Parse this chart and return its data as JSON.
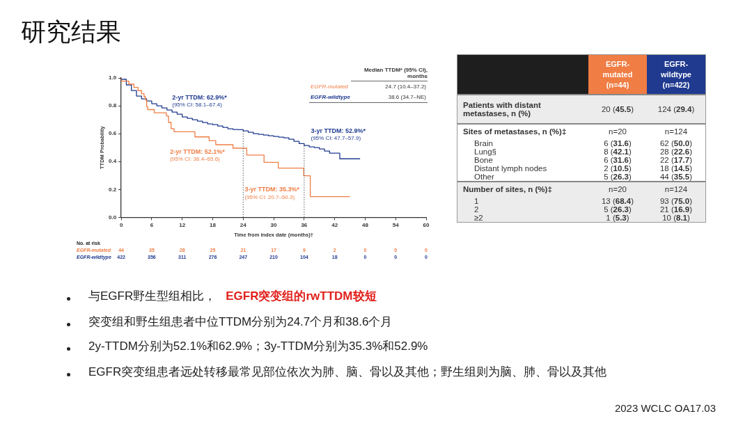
{
  "chart_data": [
    {
      "type": "step",
      "title": "研究结果",
      "xlabel": "Time from index date (months)†",
      "ylabel": "TTDM Probability",
      "legend_title": "Median TTDM* (95% CI), months",
      "legend": "top right",
      "xlim": [
        0,
        60
      ],
      "xticks": [
        0,
        6,
        12,
        18,
        24,
        30,
        36,
        42,
        48,
        54,
        60
      ],
      "ylim": [
        0,
        1
      ],
      "yticks": [
        {
          "value": 0,
          "label": "0.0"
        },
        {
          "value": 0.2,
          "label": "0.2"
        },
        {
          "value": 0.4,
          "label": "0.4"
        },
        {
          "value": 0.6,
          "label": "0.6"
        },
        {
          "value": 0.8,
          "label": "0.8"
        },
        {
          "value": 1,
          "label": "1.0"
        }
      ],
      "series": [
        {
          "name": "EGFR-mutated",
          "color": "#ef7d44",
          "x": [
            0,
            1.5,
            2.5,
            3.3,
            4,
            4.5,
            4.8,
            5,
            5.2,
            6.5,
            8.9,
            9.3,
            9.8,
            10.4,
            14.5,
            17.3,
            18.6,
            22,
            24.7,
            28.1,
            30.9,
            35.9,
            37.2,
            42.9,
            45
          ],
          "values": [
            1,
            0.977,
            0.955,
            0.932,
            0.909,
            0.886,
            0.864,
            0.841,
            0.795,
            0.773,
            0.75,
            0.727,
            0.682,
            0.636,
            0.614,
            0.577,
            0.55,
            0.521,
            0.496,
            0.447,
            0.394,
            0.353,
            0.298,
            0.149,
            0.149
          ]
        },
        {
          "name": "EGFR-wildtype",
          "color": "#1f3a8f",
          "x": [
            0,
            1,
            2,
            3,
            4,
            5,
            6,
            7,
            8,
            9,
            10,
            11,
            12,
            13,
            14,
            15,
            16,
            17,
            18,
            19,
            20,
            21,
            22,
            23,
            24,
            25,
            26,
            27,
            28,
            29,
            30,
            31,
            32,
            33,
            34,
            35,
            36,
            37,
            38,
            39,
            40,
            41,
            41.5,
            43,
            43.2,
            47
          ],
          "values": [
            1,
            0.99,
            0.95,
            0.91,
            0.87,
            0.85,
            0.835,
            0.815,
            0.8,
            0.785,
            0.77,
            0.755,
            0.74,
            0.72,
            0.71,
            0.7,
            0.69,
            0.68,
            0.67,
            0.665,
            0.655,
            0.645,
            0.635,
            0.63,
            0.629,
            0.62,
            0.61,
            0.6,
            0.595,
            0.59,
            0.585,
            0.58,
            0.575,
            0.57,
            0.56,
            0.545,
            0.529,
            0.515,
            0.505,
            0.5,
            0.49,
            0.475,
            0.46,
            0.46,
            0.42,
            0.42
          ]
        }
      ],
      "ref_lines": [
        {
          "axis": "x",
          "value": 24,
          "line_style": "dotted"
        },
        {
          "axis": "x",
          "value": 36,
          "line_style": "dotted"
        }
      ],
      "annotations": [
        "2-yr TTDM: 62.9%*\n(95% CI: 58.1–67.4)",
        "3-yr TTDM: 52.9%*\n(95% CI: 47.7–57.9)",
        "2-yr TTDM: 52.1%*\n(95% CI: 36.4–65.6)",
        "3-yr TTDM: 35.3%*\n(95% CI: 20.7–50.3)",
        "24.7 (10.4–37.2)",
        "38.6 (34.7–NE)",
        "No. at risk",
        "44 35 28 25 21 17 9 2 0 0 0",
        "422 356 311 276 247 210 104 18 0 0 0",
        "与EGFR野生型组相比，",
        "EGFR突变组的rwTTDM较短",
        "突变组和野生组患者中位TTDM分别为24.7个月和38.6个月",
        "2y-TTDM分别为52.1%和62.9%；3y-TTDM分别为35.3%和52.9%",
        "EGFR突变组患者远处转移最常见部位依次为肺、脑、骨以及其他；野生组则为脑、肺、骨以及其他",
        "2023 WCLC OA17.03"
      ]
    },
    {
      "type": "other",
      "annotations": [
        "EGFR-mutated (n=44)",
        "EGFR-wildtype (n=422)",
        "Patients with distant metastases, n (%)",
        "20 (45.5)",
        "124 (29.4)",
        "Sites of metastases, n (%)‡",
        "n=20",
        "n=124",
        "Brain",
        "6 (31.6)",
        "62 (50.0)",
        "Lung§",
        "8 (42.1)",
        "28 (22.6)",
        "Bone",
        "6 (31.6)",
        "22 (17.7)",
        "Distant lymph nodes",
        "2 (10.5)",
        "18 (14.5)",
        "Other",
        "5 (26.3)",
        "44 (35.5)",
        "Number of sites, n (%)‡",
        "n=20",
        "n=124",
        "1",
        "13 (68.4)",
        "93 (75.0)",
        "2",
        "5 (26.3)",
        "21 (16.9)",
        "≥2",
        "1 (5.3)",
        "10 (8.1)"
      ]
    }
  ]
}
